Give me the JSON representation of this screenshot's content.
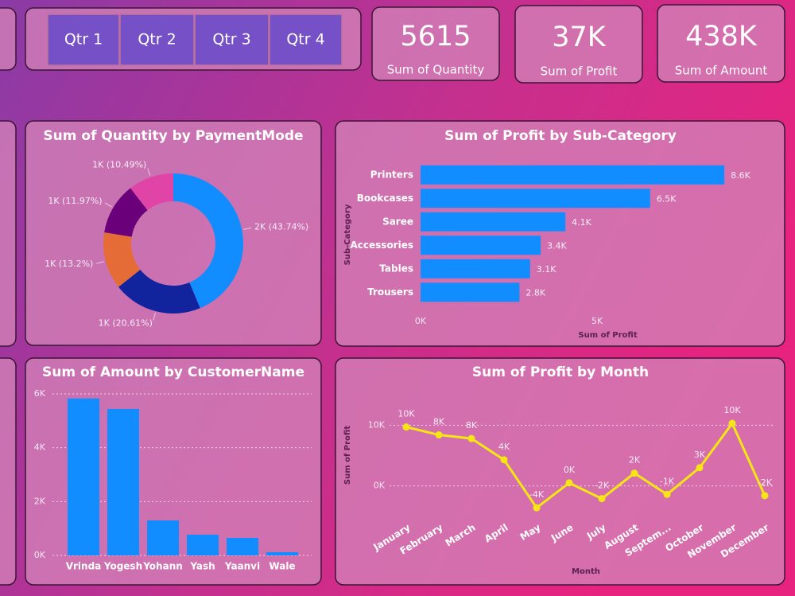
{
  "slicer": {
    "items": [
      "Qtr 1",
      "Qtr 2",
      "Qtr 3",
      "Qtr 4"
    ]
  },
  "cards": [
    {
      "value": "5615",
      "label": "Sum of Quantity"
    },
    {
      "value": "37K",
      "label": "Sum of Profit"
    },
    {
      "value": "438K",
      "label": "Sum of Amount"
    }
  ],
  "chart_data": [
    {
      "type": "donut",
      "title": "Sum of Quantity by PaymentMode",
      "values": [
        2456,
        1157,
        741,
        672,
        589
      ],
      "value_labels": [
        "2K (43.74%)",
        "1K (20.61%)",
        "1K (13.2%)",
        "1K (11.97%)",
        "1K (10.49%)"
      ],
      "colors": [
        "#118DFF",
        "#12239E",
        "#E66C37",
        "#6B007B",
        "#E044A7"
      ]
    },
    {
      "type": "hbar",
      "title": "Sum of Profit by Sub-Category",
      "categories": [
        "Printers",
        "Bookcases",
        "Saree",
        "Accessories",
        "Tables",
        "Trousers"
      ],
      "values": [
        8600,
        6500,
        4100,
        3400,
        3100,
        2800
      ],
      "value_labels": [
        "8.6K",
        "6.5K",
        "4.1K",
        "3.4K",
        "3.1K",
        "2.8K"
      ],
      "color": "#118DFF",
      "xlim": [
        0,
        9700
      ],
      "xticks": [
        {
          "value": 0,
          "label": "0K"
        },
        {
          "value": 5000,
          "label": "5K"
        }
      ],
      "xlabel": "Sum of Profit",
      "ylabel": "Sub-Category"
    },
    {
      "type": "bar",
      "title": "Sum of Amount by CustomerName",
      "categories": [
        "Vrinda",
        "Yogesh",
        "Yohann",
        "Yash",
        "Yaanvi",
        "Wale"
      ],
      "values": [
        5830,
        5440,
        1300,
        770,
        650,
        120
      ],
      "color": "#118DFF",
      "ylim": [
        0,
        6000
      ],
      "yticks": [
        {
          "value": 0,
          "label": "0K"
        },
        {
          "value": 2000,
          "label": "2K"
        },
        {
          "value": 4000,
          "label": "4K"
        },
        {
          "value": 6000,
          "label": "6K"
        }
      ],
      "grid": true
    },
    {
      "type": "line",
      "title": "Sum of Profit by Month",
      "categories": [
        "January",
        "February",
        "March",
        "April",
        "May",
        "June",
        "July",
        "August",
        "Septem...",
        "October",
        "November",
        "December"
      ],
      "values": [
        9700,
        8400,
        7800,
        4300,
        -3600,
        500,
        -2100,
        2100,
        -1400,
        3000,
        10300,
        -1600
      ],
      "value_labels": [
        "10K",
        "8K",
        "8K",
        "4K",
        "-4K",
        "0K",
        "-2K",
        "2K",
        "-1K",
        "3K",
        "10K",
        "-2K"
      ],
      "color": "#F5E614",
      "ylim": [
        -4500,
        14500
      ],
      "yticks": [
        {
          "value": 0,
          "label": "0K"
        },
        {
          "value": 10000,
          "label": "10K"
        }
      ],
      "xlabel": "Month",
      "ylabel": "Sum of Profit",
      "grid": true
    }
  ]
}
